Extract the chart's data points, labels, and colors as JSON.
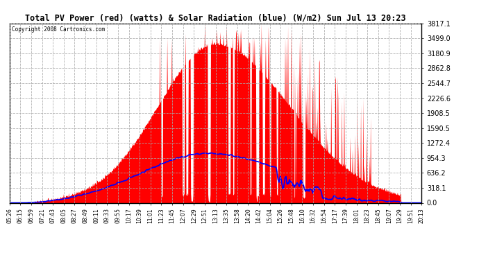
{
  "title": "Total PV Power (red) (watts) & Solar Radiation (blue) (W/m2) Sun Jul 13 20:23",
  "copyright": "Copyright 2008 Cartronics.com",
  "background_color": "#ffffff",
  "plot_bg_color": "#ffffff",
  "y_max": 3817.1,
  "y_min": 0.0,
  "y_ticks": [
    0.0,
    318.1,
    636.2,
    954.3,
    1272.4,
    1590.5,
    1908.5,
    2226.6,
    2544.7,
    2862.8,
    3180.9,
    3499.0,
    3817.1
  ],
  "x_labels": [
    "05:26",
    "06:15",
    "06:59",
    "07:21",
    "07:43",
    "08:05",
    "08:27",
    "08:49",
    "09:11",
    "09:33",
    "09:55",
    "10:17",
    "10:39",
    "11:01",
    "11:23",
    "11:45",
    "12:07",
    "12:29",
    "12:51",
    "13:13",
    "13:35",
    "13:58",
    "14:20",
    "14:42",
    "15:04",
    "15:26",
    "15:48",
    "16:10",
    "16:32",
    "16:54",
    "17:17",
    "17:39",
    "18:01",
    "18:23",
    "18:45",
    "19:07",
    "19:29",
    "19:51",
    "20:13"
  ],
  "pv_color": "#ff0000",
  "solar_color": "#0000ff",
  "grid_color": "#aaaaaa",
  "border_color": "#000000",
  "grid_linestyle": "--"
}
